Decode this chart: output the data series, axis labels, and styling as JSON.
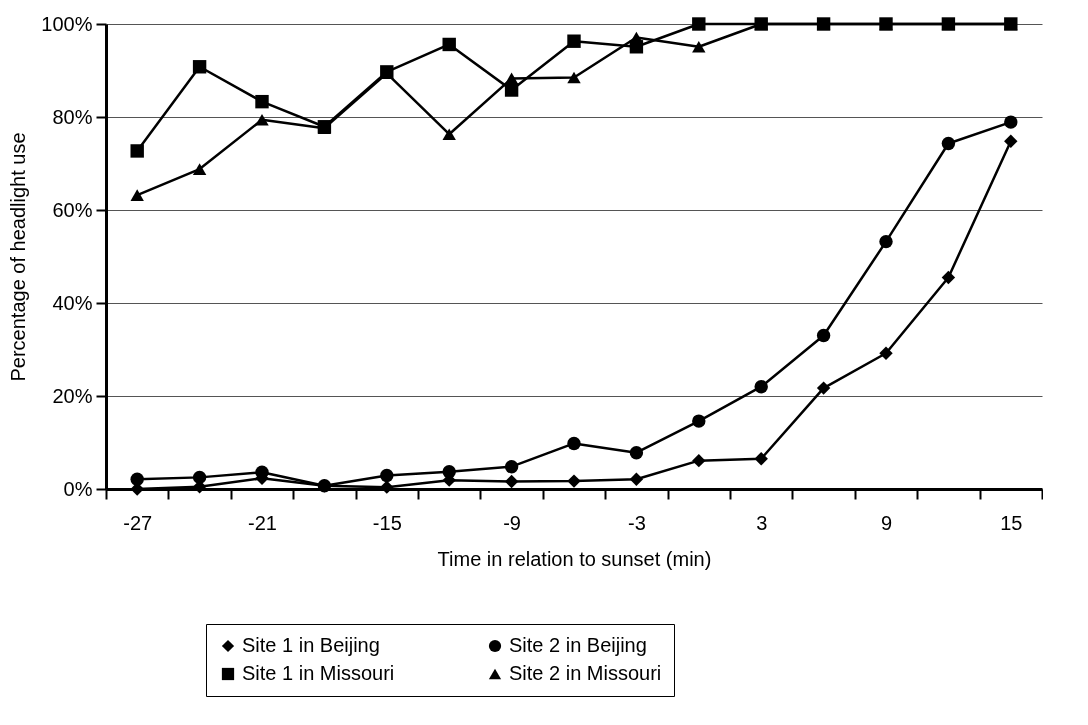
{
  "chart_data": {
    "type": "line",
    "xlabel": "Time in relation to sunset (min)",
    "ylabel": "Percentage of headlight use",
    "categories": [
      "-27",
      null,
      "-21",
      null,
      "-15",
      null,
      "-9",
      null,
      "-3",
      null,
      "3",
      null,
      "9",
      null,
      "15"
    ],
    "ylim": [
      0,
      100
    ],
    "yticks": [
      {
        "value": 0,
        "label": "0%"
      },
      {
        "value": 20,
        "label": "20%"
      },
      {
        "value": 40,
        "label": "40%"
      },
      {
        "value": 60,
        "label": "60%"
      },
      {
        "value": 80,
        "label": "80%"
      },
      {
        "value": 100,
        "label": "100%"
      }
    ],
    "grid": "y",
    "legend": "bottom",
    "line_style": "solid",
    "series": [
      {
        "name": "Site 1 in Beijing",
        "color": "#000000",
        "marker": "diamond",
        "values": [
          0,
          0.5,
          2.3,
          0.7,
          0.4,
          1.9,
          1.6,
          1.7,
          2.1,
          6.1,
          6.5,
          21.7,
          29.2,
          45.5,
          74.8
        ]
      },
      {
        "name": "Site 2 in Beijing",
        "color": "#000000",
        "marker": "circle",
        "values": [
          2.1,
          2.5,
          3.6,
          0.7,
          2.9,
          3.7,
          4.8,
          9.8,
          7.8,
          14.6,
          22.0,
          33.0,
          53.2,
          74.3,
          78.9
        ]
      },
      {
        "name": "Site 1 in Missouri",
        "color": "#000000",
        "marker": "square",
        "values": [
          72.7,
          90.8,
          83.3,
          77.9,
          89.7,
          95.6,
          85.8,
          96.3,
          95.1,
          100,
          100,
          100,
          100,
          100,
          100
        ]
      },
      {
        "name": "Site 2 in Missouri",
        "color": "#000000",
        "marker": "triangle",
        "values": [
          63.2,
          68.8,
          79.4,
          77.6,
          89.4,
          76.3,
          88.3,
          88.5,
          97.1,
          95.1,
          100,
          100,
          100,
          100,
          100
        ]
      }
    ]
  }
}
